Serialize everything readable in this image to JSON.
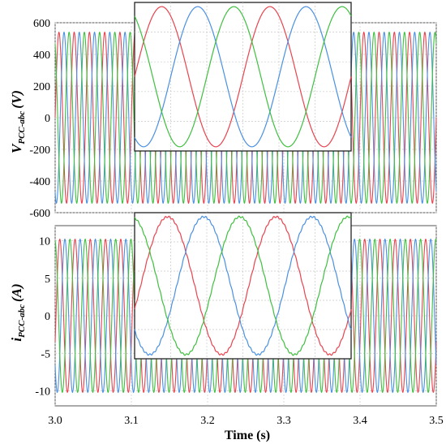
{
  "chart_data": [
    {
      "type": "line",
      "title": "",
      "ylabel_main": "V",
      "ylabel_sub": "PCC-abc",
      "ylabel_unit": "(V)",
      "xlim": [
        3.0,
        3.5
      ],
      "ylim": [
        -600,
        600
      ],
      "y_ticks": [
        "600",
        "400",
        "200",
        "0",
        "-200",
        "-400",
        "-600"
      ],
      "y_tick_values": [
        600,
        400,
        200,
        0,
        -200,
        -400,
        -600
      ],
      "grid": true,
      "frequency_hz": 50,
      "series": [
        {
          "amplitude": 540,
          "phase_deg": 0,
          "color": "#e8434f"
        },
        {
          "amplitude": 540,
          "phase_deg": -120,
          "color": "#4a90e2"
        },
        {
          "amplitude": 540,
          "phase_deg": 120,
          "color": "#3fbf3f"
        }
      ],
      "inset": {
        "x_range": [
          3.1,
          3.14
        ],
        "grid": true
      }
    },
    {
      "type": "line",
      "title": "",
      "ylabel_main": "i",
      "ylabel_sub": "PCC-abc",
      "ylabel_unit": "(A)",
      "xlim": [
        3.0,
        3.5
      ],
      "ylim": [
        -12,
        12
      ],
      "y_ticks": [
        "10",
        "5",
        "0",
        "-5",
        "-10"
      ],
      "y_tick_values": [
        10,
        5,
        0,
        -5,
        -10
      ],
      "grid": true,
      "frequency_hz": 50,
      "series": [
        {
          "amplitude": 10.2,
          "phase_deg": -20,
          "color": "#e8434f"
        },
        {
          "amplitude": 10.2,
          "phase_deg": -140,
          "color": "#4a90e2"
        },
        {
          "amplitude": 10.2,
          "phase_deg": 100,
          "color": "#3fbf3f"
        }
      ],
      "inset": {
        "x_range": [
          3.1,
          3.14
        ],
        "grid": true
      }
    }
  ],
  "x_axis": {
    "label": "Time (s)",
    "ticks": [
      "3.0",
      "3.1",
      "3.2",
      "3.3",
      "3.4",
      "3.5"
    ],
    "tick_values": [
      3.0,
      3.1,
      3.2,
      3.3,
      3.4,
      3.5
    ]
  }
}
